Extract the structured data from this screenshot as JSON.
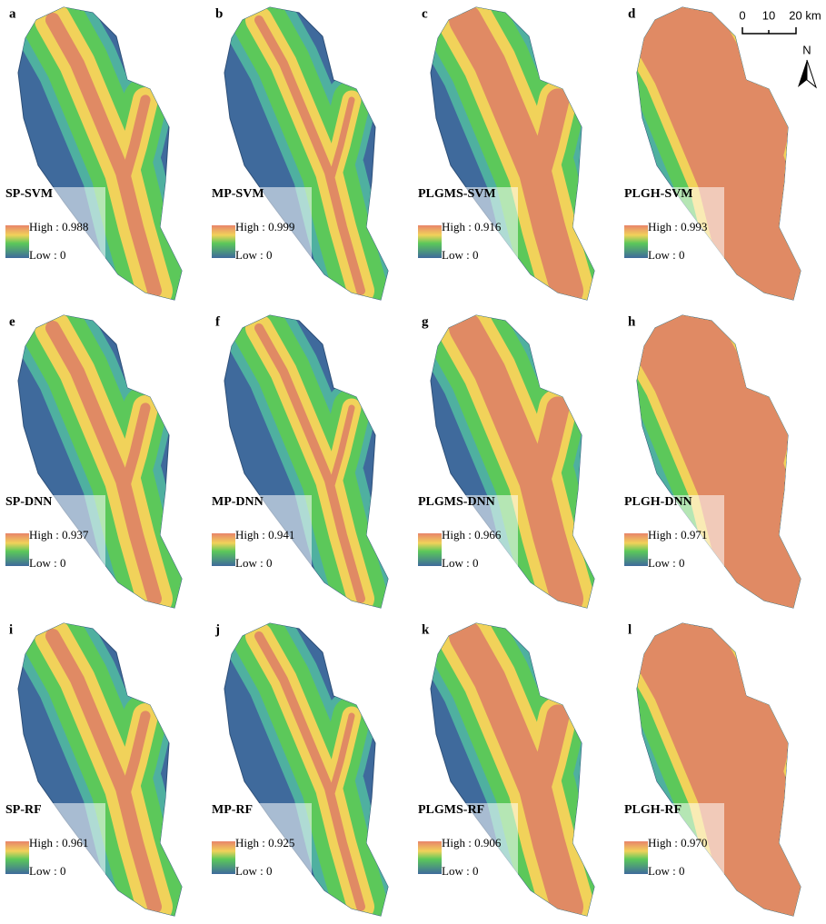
{
  "panels": [
    {
      "letter": "a",
      "title": "SP-SVM",
      "high": "High : 0.988",
      "low": "Low : 0"
    },
    {
      "letter": "b",
      "title": "MP-SVM",
      "high": "High : 0.999",
      "low": "Low : 0"
    },
    {
      "letter": "c",
      "title": "PLGMS-SVM",
      "high": "High : 0.916",
      "low": "Low : 0"
    },
    {
      "letter": "d",
      "title": "PLGH-SVM",
      "high": "High : 0.993",
      "low": "Low : 0"
    },
    {
      "letter": "e",
      "title": "SP-DNN",
      "high": "High : 0.937",
      "low": "Low : 0"
    },
    {
      "letter": "f",
      "title": "MP-DNN",
      "high": "High : 0.941",
      "low": "Low : 0"
    },
    {
      "letter": "g",
      "title": "PLGMS-DNN",
      "high": "High : 0.966",
      "low": "Low : 0"
    },
    {
      "letter": "h",
      "title": "PLGH-DNN",
      "high": "High : 0.971",
      "low": "Low : 0"
    },
    {
      "letter": "i",
      "title": "SP-RF",
      "high": "High : 0.961",
      "low": "Low : 0"
    },
    {
      "letter": "j",
      "title": "MP-RF",
      "high": "High : 0.925",
      "low": "Low : 0"
    },
    {
      "letter": "k",
      "title": "PLGMS-RF",
      "high": "High : 0.906",
      "low": "Low : 0"
    },
    {
      "letter": "l",
      "title": "PLGH-RF",
      "high": "High : 0.970",
      "low": "Low : 0"
    }
  ],
  "scale_bar": {
    "labels": [
      "0",
      "10",
      "20 km"
    ]
  },
  "north": "N"
}
